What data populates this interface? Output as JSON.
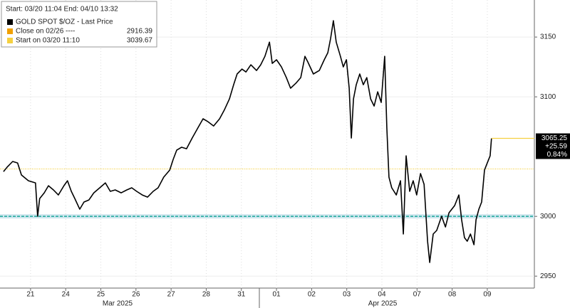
{
  "chart_data": {
    "type": "line",
    "legend_header": "Start: 03/20 11:04 End: 04/10 13:32",
    "x": [
      -0.77,
      -0.67,
      -0.51,
      -0.37,
      -0.26,
      -0.06,
      0.14,
      0.2,
      0.26,
      0.39,
      0.51,
      0.65,
      0.79,
      0.95,
      1.05,
      1.16,
      1.26,
      1.4,
      1.52,
      1.66,
      1.8,
      1.97,
      2.13,
      2.27,
      2.41,
      2.58,
      2.74,
      2.88,
      3.02,
      3.18,
      3.33,
      3.49,
      3.63,
      3.79,
      3.96,
      4.06,
      4.16,
      4.3,
      4.44,
      4.6,
      4.77,
      4.91,
      5.05,
      5.21,
      5.38,
      5.52,
      5.66,
      5.78,
      5.88,
      6.02,
      6.13,
      6.27,
      6.43,
      6.55,
      6.67,
      6.8,
      6.88,
      7.0,
      7.14,
      7.28,
      7.4,
      7.55,
      7.69,
      7.81,
      7.89,
      8.05,
      8.22,
      8.36,
      8.46,
      8.54,
      8.62,
      8.7,
      8.82,
      8.9,
      8.99,
      9.07,
      9.13,
      9.19,
      9.27,
      9.37,
      9.47,
      9.57,
      9.68,
      9.78,
      9.88,
      9.98,
      10.08,
      10.14,
      10.2,
      10.28,
      10.41,
      10.53,
      10.61,
      10.69,
      10.79,
      10.89,
      10.99,
      11.1,
      11.2,
      11.3,
      11.36,
      11.46,
      11.56,
      11.7,
      11.81,
      11.91,
      12.07,
      12.19,
      12.27,
      12.35,
      12.43,
      12.52,
      12.62,
      12.68,
      12.76,
      12.84,
      12.92,
      13.0,
      13.08,
      13.12
    ],
    "series": [
      {
        "name": "GOLD SPOT $/OZ - Last Price",
        "color": "#000000",
        "values": [
          3037.5,
          3041.1,
          3045.9,
          3044.7,
          3034.6,
          3029.8,
          3028,
          3000.1,
          3014.9,
          3019.7,
          3025.6,
          3022.1,
          3017.9,
          3025.6,
          3029.8,
          3020.9,
          3014.9,
          3006,
          3012,
          3013.7,
          3019.7,
          3023.9,
          3028,
          3020.9,
          3022.1,
          3019.7,
          3022.1,
          3023.9,
          3020.9,
          3017.9,
          3016.1,
          3020.9,
          3023.9,
          3032.8,
          3038.7,
          3047.7,
          3055.4,
          3057.8,
          3056.6,
          3065.5,
          3074.4,
          3081.6,
          3079.2,
          3075.6,
          3081.6,
          3089.3,
          3098.2,
          3110.1,
          3119.1,
          3123.2,
          3120.8,
          3126.8,
          3122,
          3126.8,
          3133.9,
          3145.8,
          3128,
          3131,
          3125,
          3116.1,
          3107.2,
          3111.3,
          3116.1,
          3133.9,
          3129.2,
          3119.1,
          3122,
          3131,
          3136.9,
          3148.8,
          3163.7,
          3145.8,
          3133.9,
          3125,
          3131,
          3107.2,
          3065.5,
          3098.2,
          3110.1,
          3119.1,
          3110.1,
          3116.1,
          3098.2,
          3092.3,
          3104.2,
          3095.3,
          3133.9,
          3074.4,
          3032.8,
          3023.9,
          3017.9,
          3029.8,
          2985.2,
          3050.6,
          3020.9,
          3029.8,
          3017.9,
          3035.8,
          3026.8,
          2979.2,
          2961.4,
          2985.2,
          2988.2,
          3000.1,
          2991.1,
          3003,
          3009,
          3017.9,
          2997.1,
          2982.2,
          2979.2,
          2985.2,
          2976.3,
          2997.1,
          3006,
          3012,
          3038.7,
          3044.7,
          3050.6,
          3065.25
        ]
      }
    ],
    "last_value_labels": [
      "3065.25",
      "+25.59",
      "0.84%"
    ],
    "reference_lines": [
      {
        "name": "Close on 02/26 ----",
        "value_label": "2916.39",
        "value": 2916.39,
        "color": "#f0a000"
      },
      {
        "name": "Start on 03/20 11:10",
        "value_label": "3039.67",
        "value": 3039.67,
        "color": "#f5d040"
      }
    ],
    "hline": {
      "value": 3000,
      "color": "#1aa89a"
    },
    "xlim": [
      -0.87,
      14.34
    ],
    "xticks": [
      {
        "value": 0,
        "label": "21"
      },
      {
        "value": 1,
        "label": "24"
      },
      {
        "value": 2,
        "label": "25"
      },
      {
        "value": 3,
        "label": "26"
      },
      {
        "value": 4,
        "label": "27"
      },
      {
        "value": 5,
        "label": "28"
      },
      {
        "value": 6,
        "label": "31"
      },
      {
        "value": 7,
        "label": "01"
      },
      {
        "value": 8,
        "label": "02"
      },
      {
        "value": 9,
        "label": "03"
      },
      {
        "value": 10,
        "label": "04"
      },
      {
        "value": 11,
        "label": "07"
      },
      {
        "value": 12,
        "label": "08"
      },
      {
        "value": 13,
        "label": "09"
      }
    ],
    "month_labels": [
      "Mar 2025",
      "Apr 2025"
    ],
    "ylim": [
      2940,
      3181
    ],
    "yticks": [
      2950,
      3000,
      3100,
      3150
    ],
    "grid": true
  }
}
